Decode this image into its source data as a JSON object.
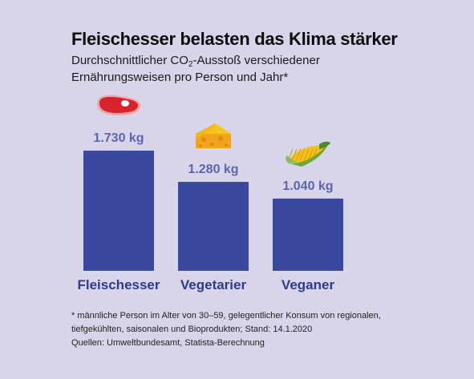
{
  "title": "Fleischesser belasten das Klima stärker",
  "subtitle": {
    "pre": "Durchschnittlicher CO",
    "sub": "2",
    "post": "-Ausstoß verschiedener",
    "line2": "Ernährungsweisen pro Person und Jahr*"
  },
  "chart_data": {
    "type": "bar",
    "categories": [
      "Fleischesser",
      "Vegetarier",
      "Veganer"
    ],
    "values": [
      1730,
      1280,
      1040
    ],
    "value_labels": [
      "1.730 kg",
      "1.280 kg",
      "1.040 kg"
    ],
    "icons": [
      "steak-icon",
      "cheese-icon",
      "corn-icon"
    ],
    "unit": "kg",
    "ylim": [
      0,
      1730
    ],
    "grid": false,
    "colors": {
      "bar": "#3b48a0",
      "value_label": "#5b66ad",
      "category_label": "#2e3a8f"
    }
  },
  "footnote": {
    "line1": "* männliche Person im Alter von 30–59, gelegentlicher Konsum von regionalen,",
    "line2": "tiefgekühlten, saisonalen und Bioprodukten; Stand: 14.1.2020",
    "line3": "Quellen: Umweltbundesamt, Statista-Berechnung"
  }
}
